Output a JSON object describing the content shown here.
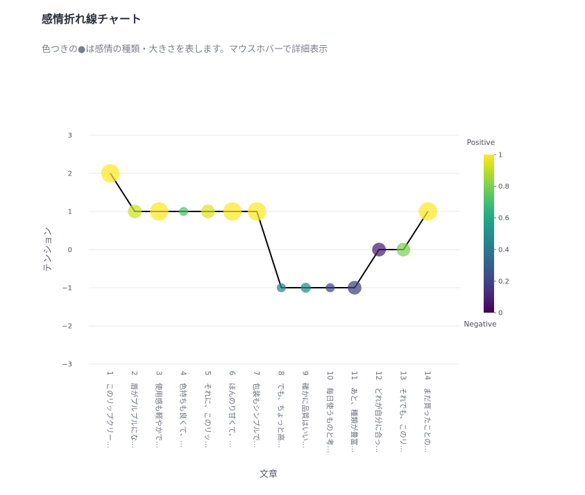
{
  "title": "感情折れ線チャート",
  "subtitle": "色つきの●は感情の種類・大きさを表します。マウスホバーで詳細表示",
  "chart_data": {
    "type": "line",
    "xlabel": "文章",
    "ylabel": "テンション",
    "ylim": [
      -3,
      3
    ],
    "yticks": [
      3,
      2,
      1,
      0,
      -1,
      -2,
      -3
    ],
    "ytick_labels": [
      "3",
      "2",
      "1",
      "0",
      "−1",
      "−2",
      "−3"
    ],
    "categories": [
      "1　このリップクリー…",
      "2　唇がプルプルにな…",
      "3　使用感も軽やかで…",
      "4　色持ちも良くて、…",
      "5　それに、このリッ…",
      "6　ほんのり甘くて、…",
      "7　包装もシンプルで…",
      "8　でも、ちょっと高…",
      "9　確かに品質はいい…",
      "10　毎日使うものと考…",
      "11　あと、種類が豊富…",
      "12　どれが自分に合っ…",
      "13　それでも、このリ…",
      "14　まだ買ったことの…"
    ],
    "values": [
      2,
      1,
      1,
      1,
      1,
      1,
      1,
      -1,
      -1,
      -1,
      -1,
      0,
      0,
      1
    ],
    "sentiment": [
      1.0,
      0.92,
      1.0,
      0.72,
      0.95,
      1.0,
      1.0,
      0.45,
      0.48,
      0.2,
      0.18,
      0.08,
      0.8,
      1.0
    ],
    "magnitude": [
      3,
      2,
      3,
      1,
      2,
      3,
      3,
      1,
      1.2,
      1,
      2,
      2,
      2,
      3
    ],
    "line_color": "#000000",
    "colorscale": "viridis",
    "colorbar": {
      "range": [
        0,
        1
      ],
      "ticks": [
        1,
        0.8,
        0.6,
        0.4,
        0.2,
        0
      ],
      "tick_labels": [
        "1",
        "0.8",
        "0.6",
        "0.4",
        "0.2",
        "0"
      ],
      "top_label": "Positive",
      "bottom_label": "Negative"
    },
    "grid": true
  }
}
